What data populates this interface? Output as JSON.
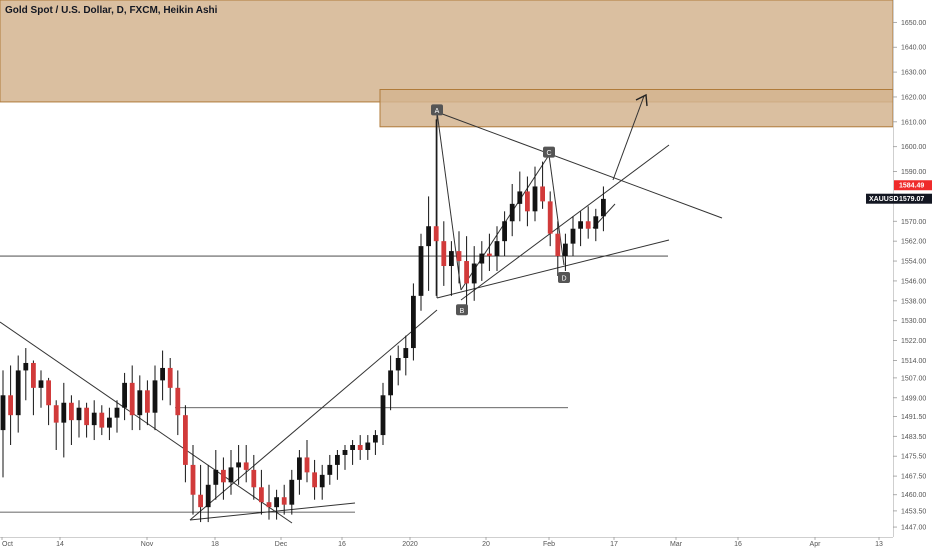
{
  "title": "Gold Spot / U.S. Dollar, D, FXCM, Heikin Ashi",
  "chart_data": {
    "type": "candlestick",
    "symbol": "XAUUSD",
    "ylim": [
      1443,
      1659
    ],
    "y_ticks": [
      "1650.00",
      "1640.00",
      "1630.00",
      "1620.00",
      "1610.00",
      "1600.00",
      "1590.00",
      "1584.49",
      "1579.07",
      "1570.00",
      "1562.00",
      "1554.00",
      "1546.00",
      "1538.00",
      "1530.00",
      "1522.00",
      "1514.00",
      "1507.00",
      "1499.00",
      "1491.50",
      "1483.50",
      "1475.50",
      "1467.50",
      "1460.00",
      "1453.50",
      "1447.00"
    ],
    "x_ticks": [
      "Oct",
      "14",
      "Nov",
      "18",
      "Dec",
      "16",
      "2020",
      "20",
      "Feb",
      "17",
      "Mar",
      "16",
      "Apr",
      "13"
    ],
    "price_tags": [
      {
        "label": "1584.49",
        "value": 1584.49,
        "color": "#ef2b2b"
      },
      {
        "label": "XAUUSD",
        "value": 1579.07,
        "color": "#131722"
      },
      {
        "label": "1579.07",
        "value": 1579.07,
        "color": "#131722"
      }
    ],
    "pattern_points": [
      {
        "label": "A",
        "value": 1611
      },
      {
        "label": "B",
        "value": 1535
      },
      {
        "label": "C",
        "value": 1594
      },
      {
        "label": "D",
        "value": 1548
      }
    ],
    "zones": [
      {
        "name": "upper-supply-zone",
        "from": 1618,
        "to": 1659,
        "color": "#d4b48f"
      },
      {
        "name": "target-zone",
        "from": 1608,
        "to": 1623,
        "color": "#d4b48f"
      }
    ],
    "horizontal_levels": [
      1556,
      1495,
      1453
    ],
    "candles": [
      {
        "o": 1486,
        "h": 1510,
        "l": 1467,
        "c": 1500
      },
      {
        "o": 1500,
        "h": 1512,
        "l": 1480,
        "c": 1492
      },
      {
        "o": 1492,
        "h": 1516,
        "l": 1485,
        "c": 1510
      },
      {
        "o": 1510,
        "h": 1519,
        "l": 1498,
        "c": 1513
      },
      {
        "o": 1513,
        "h": 1514,
        "l": 1492,
        "c": 1503
      },
      {
        "o": 1503,
        "h": 1510,
        "l": 1495,
        "c": 1506
      },
      {
        "o": 1506,
        "h": 1507,
        "l": 1488,
        "c": 1496
      },
      {
        "o": 1496,
        "h": 1498,
        "l": 1478,
        "c": 1489
      },
      {
        "o": 1489,
        "h": 1505,
        "l": 1475,
        "c": 1497
      },
      {
        "o": 1497,
        "h": 1500,
        "l": 1480,
        "c": 1490
      },
      {
        "o": 1490,
        "h": 1498,
        "l": 1483,
        "c": 1495
      },
      {
        "o": 1495,
        "h": 1497,
        "l": 1483,
        "c": 1488
      },
      {
        "o": 1488,
        "h": 1498,
        "l": 1482,
        "c": 1493
      },
      {
        "o": 1493,
        "h": 1496,
        "l": 1484,
        "c": 1487
      },
      {
        "o": 1487,
        "h": 1495,
        "l": 1482,
        "c": 1491
      },
      {
        "o": 1491,
        "h": 1498,
        "l": 1485,
        "c": 1495
      },
      {
        "o": 1495,
        "h": 1509,
        "l": 1490,
        "c": 1505
      },
      {
        "o": 1505,
        "h": 1512,
        "l": 1486,
        "c": 1492
      },
      {
        "o": 1492,
        "h": 1508,
        "l": 1486,
        "c": 1502
      },
      {
        "o": 1502,
        "h": 1506,
        "l": 1488,
        "c": 1493
      },
      {
        "o": 1493,
        "h": 1512,
        "l": 1486,
        "c": 1506
      },
      {
        "o": 1506,
        "h": 1518,
        "l": 1498,
        "c": 1511
      },
      {
        "o": 1511,
        "h": 1515,
        "l": 1496,
        "c": 1503
      },
      {
        "o": 1503,
        "h": 1510,
        "l": 1484,
        "c": 1492
      },
      {
        "o": 1492,
        "h": 1496,
        "l": 1465,
        "c": 1472
      },
      {
        "o": 1472,
        "h": 1480,
        "l": 1452,
        "c": 1460
      },
      {
        "o": 1460,
        "h": 1472,
        "l": 1449,
        "c": 1455
      },
      {
        "o": 1455,
        "h": 1472,
        "l": 1449,
        "c": 1464
      },
      {
        "o": 1464,
        "h": 1478,
        "l": 1458,
        "c": 1470
      },
      {
        "o": 1470,
        "h": 1475,
        "l": 1458,
        "c": 1465
      },
      {
        "o": 1465,
        "h": 1478,
        "l": 1460,
        "c": 1471
      },
      {
        "o": 1471,
        "h": 1480,
        "l": 1464,
        "c": 1473
      },
      {
        "o": 1473,
        "h": 1480,
        "l": 1465,
        "c": 1470
      },
      {
        "o": 1470,
        "h": 1476,
        "l": 1458,
        "c": 1463
      },
      {
        "o": 1463,
        "h": 1470,
        "l": 1452,
        "c": 1457
      },
      {
        "o": 1457,
        "h": 1464,
        "l": 1450,
        "c": 1455
      },
      {
        "o": 1455,
        "h": 1462,
        "l": 1450,
        "c": 1459
      },
      {
        "o": 1459,
        "h": 1464,
        "l": 1452,
        "c": 1456
      },
      {
        "o": 1456,
        "h": 1470,
        "l": 1452,
        "c": 1466
      },
      {
        "o": 1466,
        "h": 1478,
        "l": 1460,
        "c": 1475
      },
      {
        "o": 1475,
        "h": 1482,
        "l": 1465,
        "c": 1469
      },
      {
        "o": 1469,
        "h": 1474,
        "l": 1458,
        "c": 1463
      },
      {
        "o": 1463,
        "h": 1472,
        "l": 1458,
        "c": 1468
      },
      {
        "o": 1468,
        "h": 1476,
        "l": 1464,
        "c": 1472
      },
      {
        "o": 1472,
        "h": 1478,
        "l": 1466,
        "c": 1476
      },
      {
        "o": 1476,
        "h": 1480,
        "l": 1470,
        "c": 1478
      },
      {
        "o": 1478,
        "h": 1482,
        "l": 1472,
        "c": 1480
      },
      {
        "o": 1480,
        "h": 1484,
        "l": 1474,
        "c": 1478
      },
      {
        "o": 1478,
        "h": 1484,
        "l": 1474,
        "c": 1481
      },
      {
        "o": 1481,
        "h": 1486,
        "l": 1476,
        "c": 1484
      },
      {
        "o": 1484,
        "h": 1505,
        "l": 1480,
        "c": 1500
      },
      {
        "o": 1500,
        "h": 1516,
        "l": 1494,
        "c": 1510
      },
      {
        "o": 1510,
        "h": 1520,
        "l": 1504,
        "c": 1515
      },
      {
        "o": 1515,
        "h": 1524,
        "l": 1508,
        "c": 1519
      },
      {
        "o": 1519,
        "h": 1545,
        "l": 1514,
        "c": 1540
      },
      {
        "o": 1540,
        "h": 1565,
        "l": 1534,
        "c": 1560
      },
      {
        "o": 1560,
        "h": 1580,
        "l": 1542,
        "c": 1568
      },
      {
        "o": 1568,
        "h": 1611,
        "l": 1540,
        "c": 1562
      },
      {
        "o": 1562,
        "h": 1570,
        "l": 1544,
        "c": 1552
      },
      {
        "o": 1552,
        "h": 1562,
        "l": 1540,
        "c": 1558
      },
      {
        "o": 1558,
        "h": 1566,
        "l": 1545,
        "c": 1554
      },
      {
        "o": 1554,
        "h": 1564,
        "l": 1535,
        "c": 1545
      },
      {
        "o": 1545,
        "h": 1560,
        "l": 1538,
        "c": 1553
      },
      {
        "o": 1553,
        "h": 1562,
        "l": 1546,
        "c": 1557
      },
      {
        "o": 1557,
        "h": 1565,
        "l": 1550,
        "c": 1556
      },
      {
        "o": 1556,
        "h": 1568,
        "l": 1550,
        "c": 1562
      },
      {
        "o": 1562,
        "h": 1574,
        "l": 1556,
        "c": 1570
      },
      {
        "o": 1570,
        "h": 1585,
        "l": 1564,
        "c": 1577
      },
      {
        "o": 1577,
        "h": 1590,
        "l": 1570,
        "c": 1582
      },
      {
        "o": 1582,
        "h": 1588,
        "l": 1568,
        "c": 1574
      },
      {
        "o": 1574,
        "h": 1592,
        "l": 1570,
        "c": 1584
      },
      {
        "o": 1584,
        "h": 1594,
        "l": 1575,
        "c": 1578
      },
      {
        "o": 1578,
        "h": 1582,
        "l": 1560,
        "c": 1565
      },
      {
        "o": 1565,
        "h": 1570,
        "l": 1548,
        "c": 1556
      },
      {
        "o": 1556,
        "h": 1565,
        "l": 1550,
        "c": 1561
      },
      {
        "o": 1561,
        "h": 1572,
        "l": 1556,
        "c": 1567
      },
      {
        "o": 1567,
        "h": 1574,
        "l": 1560,
        "c": 1570
      },
      {
        "o": 1570,
        "h": 1576,
        "l": 1563,
        "c": 1567
      },
      {
        "o": 1567,
        "h": 1575,
        "l": 1562,
        "c": 1572
      },
      {
        "o": 1572,
        "h": 1584,
        "l": 1566,
        "c": 1579
      }
    ]
  }
}
